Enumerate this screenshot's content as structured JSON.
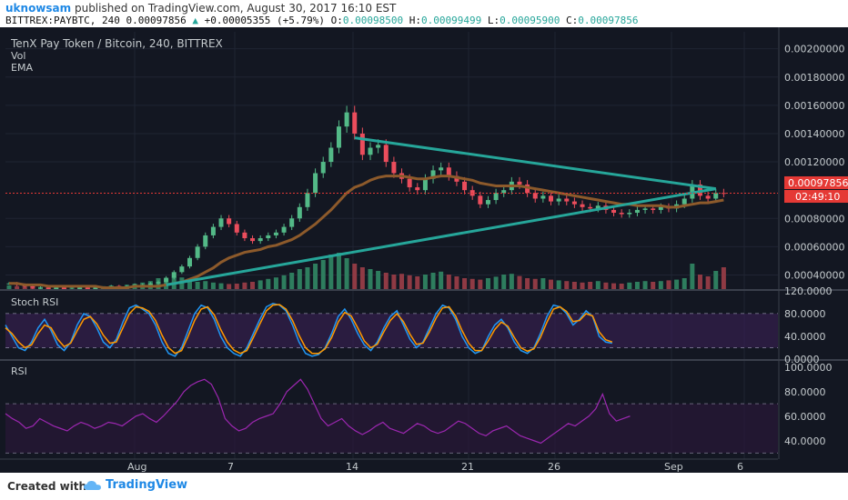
{
  "header": {
    "user": "uknowsam",
    "published": "published on TradingView.com, August 30, 2017 16:10 EST",
    "symbol": "BITTREX:PAYBTC, 240",
    "last": "0.00097856",
    "change": "+0.00005355 (+5.79%)",
    "o_label": "O:",
    "o": "0.00098500",
    "h_label": "H:",
    "h": "0.00099499",
    "l_label": "L:",
    "l": "0.00095900",
    "c_label": "C:",
    "c": "0.00097856"
  },
  "main_pane": {
    "title": "TenX Pay Token / Bitcoin, 240, BITTREX",
    "ind1": "Vol",
    "ind2": "EMA",
    "price_badge": "0.00097856",
    "time_badge": "02:49:10"
  },
  "stoch_pane": {
    "title": "Stoch RSI"
  },
  "rsi_pane": {
    "title": "RSI"
  },
  "footer": {
    "created": "Created with",
    "brand": "TradingView"
  },
  "colors": {
    "bg": "#131722",
    "up": "#53b987",
    "down": "#eb4d5c",
    "trend": "#26a69a",
    "ema": "#8d5a2b",
    "stoch_k": "#2196f3",
    "stoch_d": "#ff9800",
    "rsi": "#9c27b0"
  },
  "chart_data": [
    {
      "type": "candlestick",
      "title": "TenX Pay Token / Bitcoin, 240, BITTREX",
      "x_ticks": [
        "Aug",
        "7",
        "14",
        "21",
        "26",
        "Sep",
        "6"
      ],
      "y_ticks": [
        "0.00200000",
        "0.00180000",
        "0.00160000",
        "0.00140000",
        "0.00120000",
        "0.00080000",
        "0.00060000",
        "0.00040000"
      ],
      "ylim": [
        0.0003,
        0.00212
      ],
      "close": [
        0.00034,
        0.00033,
        0.00032,
        0.00031,
        0.00031,
        0.0003,
        0.00031,
        0.0003,
        0.0003,
        0.00031,
        0.0003,
        0.00031,
        0.00031,
        0.00032,
        0.00031,
        0.00032,
        0.00033,
        0.00033,
        0.00034,
        0.00035,
        0.00038,
        0.00042,
        0.00046,
        0.00052,
        0.0006,
        0.00068,
        0.00074,
        0.0008,
        0.00076,
        0.0007,
        0.00066,
        0.00064,
        0.00066,
        0.00068,
        0.0007,
        0.00074,
        0.0008,
        0.00088,
        0.00098,
        0.00112,
        0.0012,
        0.0013,
        0.00145,
        0.00155,
        0.0014,
        0.00125,
        0.0013,
        0.00132,
        0.0012,
        0.00112,
        0.00108,
        0.00102,
        0.001,
        0.00108,
        0.00114,
        0.00116,
        0.0011,
        0.00106,
        0.001,
        0.00096,
        0.0009,
        0.00093,
        0.00098,
        0.001,
        0.00106,
        0.00104,
        0.00098,
        0.00094,
        0.00096,
        0.00092,
        0.00094,
        0.00092,
        0.0009,
        0.00088,
        0.00087,
        0.00089,
        0.00086,
        0.00084,
        0.00083,
        0.00084,
        0.00086,
        0.00087,
        0.00086,
        0.00088,
        0.00087,
        0.0009,
        0.00094,
        0.00104,
        0.00096,
        0.00094,
        0.00098,
        0.00097856
      ],
      "ema": [
        0.00034,
        0.00034,
        0.00033,
        0.00033,
        0.00033,
        0.00032,
        0.00032,
        0.00032,
        0.00032,
        0.00032,
        0.00032,
        0.00032,
        0.00031,
        0.00031,
        0.00031,
        0.00031,
        0.00032,
        0.00032,
        0.00032,
        0.00032,
        0.00033,
        0.00034,
        0.00035,
        0.00037,
        0.00039,
        0.00042,
        0.00045,
        0.00049,
        0.00052,
        0.00054,
        0.00056,
        0.00057,
        0.00058,
        0.0006,
        0.00061,
        0.00063,
        0.00065,
        0.00068,
        0.00072,
        0.00076,
        0.00081,
        0.00086,
        0.00092,
        0.00098,
        0.00102,
        0.00104,
        0.00107,
        0.00109,
        0.0011,
        0.0011,
        0.0011,
        0.00109,
        0.00108,
        0.00108,
        0.00109,
        0.0011,
        0.0011,
        0.00109,
        0.00108,
        0.00107,
        0.00105,
        0.00104,
        0.00103,
        0.00103,
        0.00103,
        0.00103,
        0.00102,
        0.00101,
        0.001,
        0.00099,
        0.00098,
        0.00097,
        0.00096,
        0.00095,
        0.00094,
        0.00093,
        0.00092,
        0.00091,
        0.0009,
        0.0009,
        0.00089,
        0.00089,
        0.00089,
        0.00089,
        0.00088,
        0.00088,
        0.00089,
        0.0009,
        0.00091,
        0.00091,
        0.00092,
        0.00093
      ],
      "trendline_upper": [
        [
          44,
          0.00137
        ],
        [
          90,
          0.00101
        ]
      ],
      "trendline_lower": [
        [
          20,
          0.00033
        ],
        [
          90,
          0.00101
        ]
      ],
      "volume": [
        10,
        8,
        9,
        7,
        6,
        8,
        7,
        6,
        9,
        8,
        7,
        9,
        8,
        10,
        9,
        12,
        15,
        18,
        22,
        30,
        28,
        35,
        32,
        25,
        20,
        22,
        18,
        16,
        14,
        15,
        18,
        20,
        24,
        28,
        32,
        38,
        45,
        55,
        60,
        70,
        80,
        95,
        100,
        85,
        70,
        60,
        55,
        50,
        45,
        40,
        42,
        38,
        35,
        40,
        45,
        48,
        40,
        35,
        30,
        28,
        26,
        30,
        34,
        40,
        42,
        36,
        30,
        28,
        30,
        26,
        24,
        22,
        20,
        18,
        20,
        22,
        18,
        16,
        15,
        18,
        20,
        22,
        20,
        22,
        24,
        26,
        30,
        70,
        40,
        35,
        50,
        60
      ]
    },
    {
      "type": "line",
      "title": "Stoch RSI",
      "y_ticks": [
        "120.0000",
        "80.0000",
        "40.0000",
        "0.0000"
      ],
      "ylim": [
        0,
        120
      ],
      "bands": [
        20,
        80
      ],
      "series": [
        {
          "values": [
            60,
            40,
            20,
            15,
            30,
            55,
            70,
            50,
            25,
            15,
            30,
            60,
            80,
            75,
            55,
            30,
            20,
            35,
            65,
            90,
            95,
            88,
            80,
            60,
            30,
            10,
            5,
            20,
            50,
            80,
            95,
            90,
            70,
            40,
            20,
            10,
            5,
            20,
            45,
            70,
            92,
            98,
            95,
            85,
            60,
            30,
            10,
            5,
            8,
            20,
            45,
            75,
            88,
            70,
            45,
            25,
            15,
            30,
            55,
            75,
            85,
            60,
            35,
            20,
            30,
            55,
            80,
            95,
            90,
            70,
            40,
            20,
            10,
            15,
            40,
            60,
            70,
            55,
            30,
            15,
            10,
            20,
            45,
            75,
            95,
            92,
            80,
            60,
            70,
            85,
            75,
            40,
            30,
            28
          ]
        },
        {
          "values": [
            55,
            45,
            30,
            20,
            25,
            45,
            60,
            55,
            35,
            22,
            28,
            50,
            70,
            75,
            62,
            42,
            28,
            30,
            55,
            80,
            92,
            90,
            84,
            68,
            42,
            20,
            10,
            15,
            40,
            68,
            88,
            92,
            78,
            52,
            30,
            16,
            10,
            15,
            38,
            62,
            85,
            95,
            96,
            88,
            68,
            42,
            20,
            10,
            10,
            18,
            38,
            65,
            82,
            76,
            55,
            32,
            20,
            26,
            48,
            68,
            80,
            66,
            44,
            26,
            28,
            48,
            72,
            90,
            92,
            76,
            50,
            28,
            15,
            15,
            32,
            52,
            65,
            58,
            38,
            20,
            14,
            18,
            38,
            65,
            88,
            92,
            84,
            66,
            68,
            80,
            76,
            48,
            34,
            30
          ]
        }
      ]
    },
    {
      "type": "line",
      "title": "RSI",
      "y_ticks": [
        "100.0000",
        "80.0000",
        "60.0000",
        "40.0000"
      ],
      "ylim": [
        25,
        105
      ],
      "bands": [
        30,
        70
      ],
      "series": [
        {
          "values": [
            62,
            58,
            55,
            50,
            52,
            58,
            55,
            52,
            50,
            48,
            52,
            55,
            53,
            50,
            52,
            55,
            54,
            52,
            56,
            60,
            62,
            58,
            55,
            60,
            66,
            72,
            80,
            85,
            88,
            90,
            86,
            75,
            58,
            52,
            48,
            50,
            55,
            58,
            60,
            62,
            70,
            80,
            85,
            90,
            82,
            70,
            58,
            52,
            55,
            58,
            52,
            48,
            45,
            48,
            52,
            55,
            50,
            48,
            46,
            50,
            54,
            52,
            48,
            46,
            48,
            52,
            56,
            54,
            50,
            46,
            44,
            48,
            50,
            52,
            48,
            44,
            42,
            40,
            38,
            42,
            46,
            50,
            54,
            52,
            56,
            60,
            66,
            78,
            62,
            56,
            58,
            60
          ]
        }
      ]
    }
  ]
}
